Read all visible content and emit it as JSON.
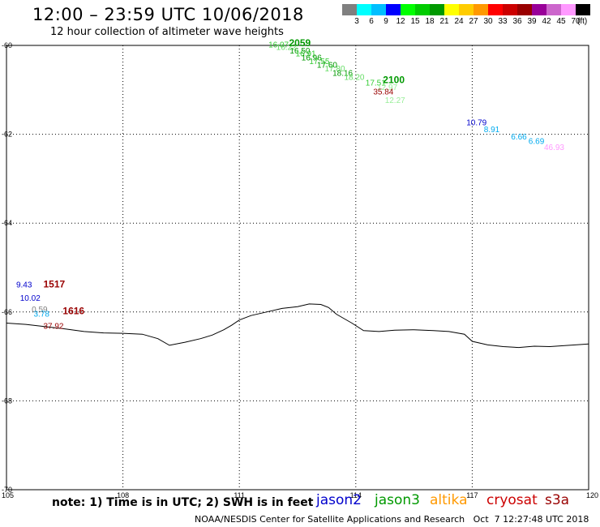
{
  "title": "12:00 – 23:59 UTC 10/06/2018",
  "subtitle": "12 hour collection of altimeter wave heights",
  "note": "note: 1) Time is in UTC; 2) SWH is in feet",
  "credit": "NOAA/NESDIS Center for Satellite Applications and Research   Oct  7 12:27:48 UTC 2018",
  "colorbar": {
    "unit": "(ft)",
    "colors": [
      "#808080",
      "#00ffff",
      "#00bfff",
      "#0000ff",
      "#00ff00",
      "#00cc00",
      "#009900",
      "#ffff00",
      "#ffcc00",
      "#ff9900",
      "#ff0000",
      "#cc0000",
      "#990000",
      "#990099",
      "#cc66cc",
      "#ff99ff",
      "#000000"
    ],
    "labels": [
      "3",
      "6",
      "9",
      "12",
      "15",
      "18",
      "21",
      "24",
      "27",
      "30",
      "33",
      "36",
      "39",
      "42",
      "45",
      "70"
    ]
  },
  "satellites": [
    {
      "name": "jason2",
      "color": "#0000cc"
    },
    {
      "name": "jason3",
      "color": "#009900"
    },
    {
      "name": "altika",
      "color": "#ff9900"
    },
    {
      "name": "cryosat",
      "color": "#cc0000"
    },
    {
      "name": "s3a",
      "color": "#990000"
    }
  ],
  "map": {
    "lon_range": [
      105,
      120
    ],
    "lat_range": [
      -70,
      -60
    ],
    "lon_ticks": [
      "105",
      "108",
      "111",
      "114",
      "117",
      "120"
    ],
    "lat_ticks": [
      "-60",
      "-62",
      "-64",
      "-66",
      "-68",
      "-70"
    ],
    "coastline": [
      [
        105.0,
        -66.25
      ],
      [
        105.5,
        -66.28
      ],
      [
        106.0,
        -66.33
      ],
      [
        106.5,
        -66.38
      ],
      [
        107.0,
        -66.44
      ],
      [
        107.5,
        -66.47
      ],
      [
        108.0,
        -66.48
      ],
      [
        108.5,
        -66.5
      ],
      [
        108.9,
        -66.6
      ],
      [
        109.2,
        -66.75
      ],
      [
        109.6,
        -66.68
      ],
      [
        110.0,
        -66.6
      ],
      [
        110.3,
        -66.52
      ],
      [
        110.6,
        -66.4
      ],
      [
        110.8,
        -66.3
      ],
      [
        111.0,
        -66.18
      ],
      [
        111.3,
        -66.08
      ],
      [
        111.7,
        -66.0
      ],
      [
        112.1,
        -65.92
      ],
      [
        112.5,
        -65.88
      ],
      [
        112.8,
        -65.82
      ],
      [
        113.1,
        -65.83
      ],
      [
        113.3,
        -65.9
      ],
      [
        113.5,
        -66.05
      ],
      [
        113.7,
        -66.15
      ],
      [
        113.9,
        -66.25
      ],
      [
        114.2,
        -66.42
      ],
      [
        114.6,
        -66.44
      ],
      [
        115.0,
        -66.41
      ],
      [
        115.5,
        -66.4
      ],
      [
        116.0,
        -66.42
      ],
      [
        116.4,
        -66.44
      ],
      [
        116.8,
        -66.5
      ],
      [
        117.0,
        -66.66
      ],
      [
        117.4,
        -66.74
      ],
      [
        117.8,
        -66.78
      ],
      [
        118.2,
        -66.8
      ],
      [
        118.6,
        -66.77
      ],
      [
        119.0,
        -66.78
      ],
      [
        119.5,
        -66.75
      ],
      [
        120.0,
        -66.72
      ]
    ],
    "labels": [
      {
        "lon": 111.75,
        "lat": -60.05,
        "text": "16.07",
        "color": "#33cc33"
      },
      {
        "lon": 111.95,
        "lat": -60.1,
        "text": "16.22",
        "color": "#66dd66"
      },
      {
        "lon": 112.28,
        "lat": -60.02,
        "text": "2059",
        "color": "#009900",
        "bold": true
      },
      {
        "lon": 112.3,
        "lat": -60.18,
        "text": "16.50",
        "color": "#009900"
      },
      {
        "lon": 112.45,
        "lat": -60.25,
        "text": "16.91",
        "color": "#33cc33"
      },
      {
        "lon": 112.6,
        "lat": -60.34,
        "text": "16.96",
        "color": "#009900"
      },
      {
        "lon": 112.8,
        "lat": -60.42,
        "text": "17.55",
        "color": "#33cc33"
      },
      {
        "lon": 113.0,
        "lat": -60.5,
        "text": "17.60",
        "color": "#009900"
      },
      {
        "lon": 113.2,
        "lat": -60.58,
        "text": "17.80",
        "color": "#66dd66"
      },
      {
        "lon": 113.4,
        "lat": -60.68,
        "text": "18.16",
        "color": "#009900"
      },
      {
        "lon": 113.7,
        "lat": -60.78,
        "text": "18.20",
        "color": "#66dd66"
      },
      {
        "lon": 114.25,
        "lat": -60.9,
        "text": "17.51",
        "color": "#33cc33"
      },
      {
        "lon": 114.55,
        "lat": -61.0,
        "text": "12.97",
        "color": "#99ee99"
      },
      {
        "lon": 114.7,
        "lat": -60.85,
        "text": "2100",
        "color": "#009900",
        "bold": true
      },
      {
        "lon": 114.75,
        "lat": -61.3,
        "text": "12.27",
        "color": "#99ee99"
      },
      {
        "lon": 114.45,
        "lat": -61.1,
        "text": "35.84",
        "color": "#990000"
      },
      {
        "lon": 116.85,
        "lat": -61.8,
        "text": "10.79",
        "color": "#0000cc"
      },
      {
        "lon": 117.3,
        "lat": -61.95,
        "text": "8.91",
        "color": "#00aaee"
      },
      {
        "lon": 118.0,
        "lat": -62.12,
        "text": "6.66",
        "color": "#00aaee"
      },
      {
        "lon": 118.45,
        "lat": -62.22,
        "text": "6.69",
        "color": "#00aaee"
      },
      {
        "lon": 118.85,
        "lat": -62.35,
        "text": "46.93",
        "color": "#ff99ff"
      },
      {
        "lon": 105.25,
        "lat": -65.45,
        "text": "9.43",
        "color": "#0000cc"
      },
      {
        "lon": 105.95,
        "lat": -65.45,
        "text": "1517",
        "color": "#990000",
        "bold": true
      },
      {
        "lon": 105.35,
        "lat": -65.75,
        "text": "10.02",
        "color": "#0000cc"
      },
      {
        "lon": 105.65,
        "lat": -66.0,
        "text": "0.59",
        "color": "#808080"
      },
      {
        "lon": 105.7,
        "lat": -66.1,
        "text": "3.78",
        "color": "#00aaee"
      },
      {
        "lon": 106.45,
        "lat": -66.05,
        "text": "1616",
        "color": "#990000",
        "bold": true
      },
      {
        "lon": 105.95,
        "lat": -66.38,
        "text": "37.92",
        "color": "#990000"
      }
    ]
  }
}
